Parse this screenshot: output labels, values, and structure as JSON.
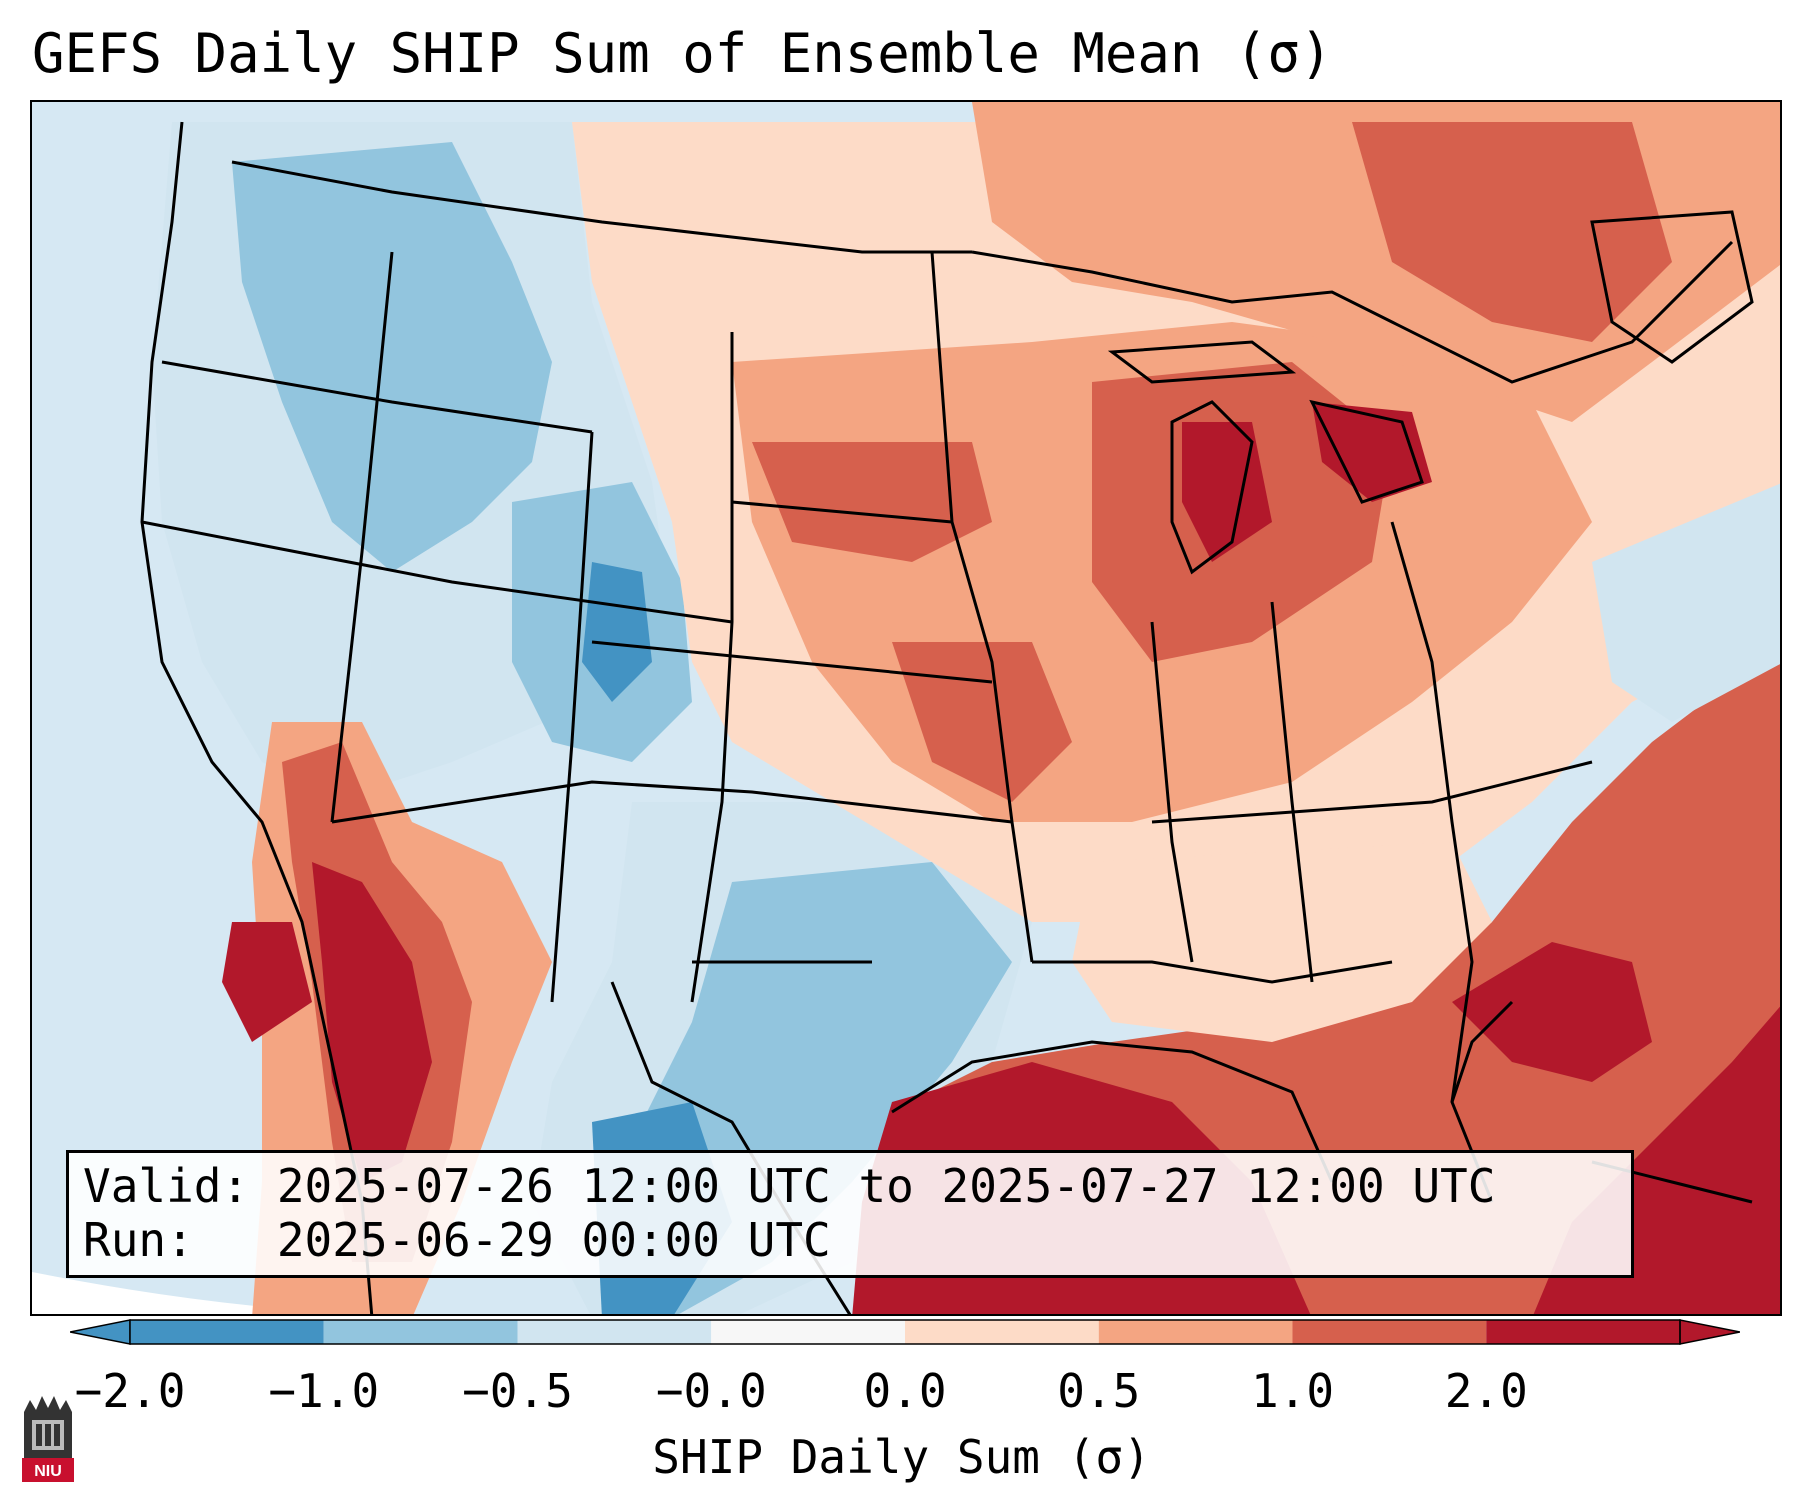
{
  "title": "GEFS Daily SHIP Sum of Ensemble Mean (σ)",
  "valid_line": "Valid: 2025-07-26 12:00 UTC to 2025-07-27 12:00 UTC",
  "run_line": "Run:   2025-06-29 00:00 UTC",
  "colorbar": {
    "label": "SHIP Daily Sum (σ)",
    "ticks": [
      "−2.0",
      "−1.0",
      "−0.5",
      "−0.0",
      "0.0",
      "0.5",
      "1.0",
      "2.0"
    ],
    "colors": [
      "#4393c3",
      "#92c5de",
      "#d1e5f0",
      "#f7f7f7",
      "#fddbc7",
      "#f4a582",
      "#d6604d",
      "#b2182b"
    ],
    "extend": "both"
  },
  "logo": {
    "text": "NIU",
    "icon": "niu-logo-icon"
  },
  "map": {
    "region": "Contiguous United States",
    "anomaly_colors": {
      "strong_positive": "#b2182b",
      "positive": "#d6604d",
      "weak_positive": "#f4a582",
      "slight_positive": "#fddbc7",
      "slight_negative": "#d1e5f0",
      "negative": "#92c5de",
      "strong_negative": "#4393c3"
    }
  }
}
